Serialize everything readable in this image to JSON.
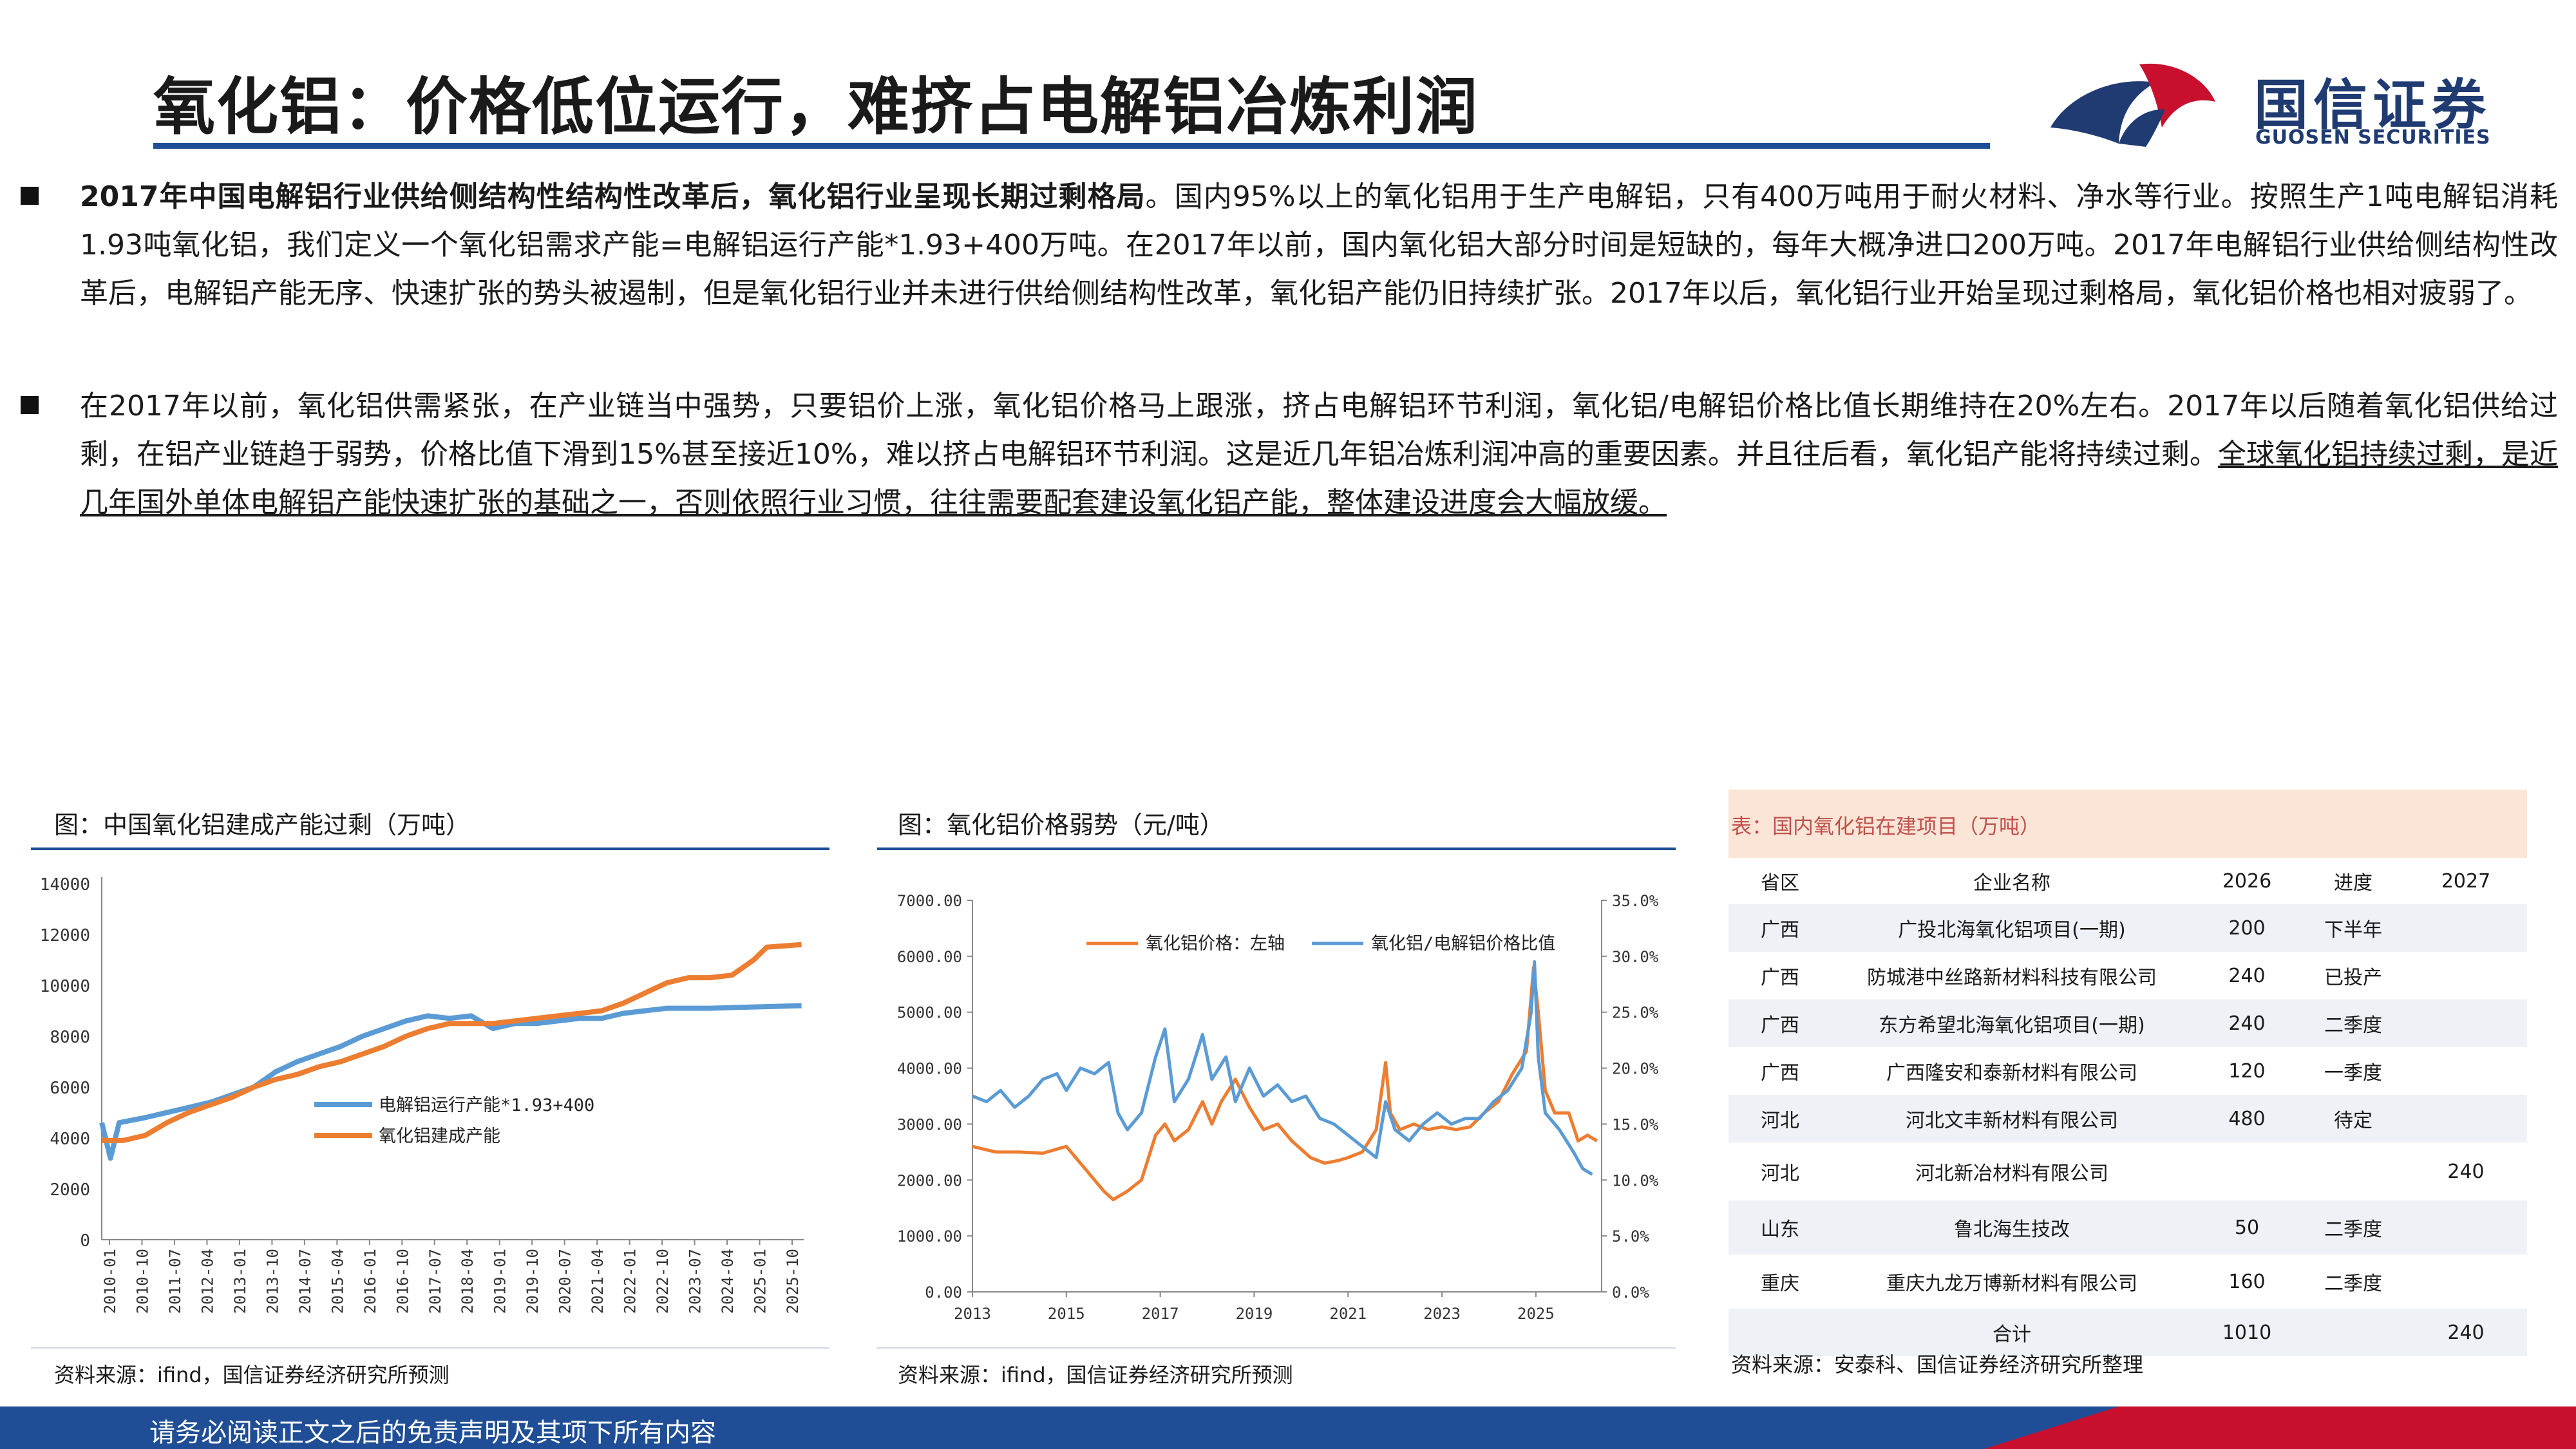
{
  "header": {
    "title": "氧化铝：价格低位运行，难挤占电解铝冶炼利润",
    "logo_text": "国信证券",
    "logo_sub": "GUOSEN SECURITIES",
    "accent_color": "#1f4e96",
    "logo_red": "#c8102e"
  },
  "bullets": [
    {
      "bold": "2017年中国电解铝行业供给侧结构性结构性改革后，氧化铝行业呈现长期过剩格局",
      "text": "。国内95%以上的氧化铝用于生产电解铝，只有400万吨用于耐火材料、净水等行业。按照生产1吨电解铝消耗1.93吨氧化铝，我们定义一个氧化铝需求产能=电解铝运行产能*1.93+400万吨。在2017年以前，国内氧化铝大部分时间是短缺的，每年大概净进口200万吨。2017年电解铝行业供给侧结构性改革后，电解铝产能无序、快速扩张的势头被遏制，但是氧化铝行业并未进行供给侧结构性改革，氧化铝产能仍旧持续扩张。2017年以后，氧化铝行业开始呈现过剩格局，氧化铝价格也相对疲弱了。"
    },
    {
      "text": "在2017年以前，氧化铝供需紧张，在产业链当中强势，只要铝价上涨，氧化铝价格马上跟涨，挤占电解铝环节利润，氧化铝/电解铝价格比值长期维持在20%左右。2017年以后随着氧化铝供给过剩，在铝产业链趋于弱势，价格比值下滑到15%甚至接近10%，难以挤占电解铝环节利润。这是近几年铝冶炼利润冲高的重要因素。并且往后看，氧化铝产能将持续过剩。",
      "underline": "全球氧化铝持续过剩，是近几年国外单体电解铝产能快速扩张的基础之一，否则依照行业习惯，往往需要配套建设氧化铝产能，整体建设进度会大幅放缓。"
    }
  ],
  "chart1": {
    "fig_title": "图：中国氧化铝建成产能过剩（万吨）",
    "source": "资料来源：ifind，国信证券经济研究所预测",
    "chart_data": {
      "type": "line",
      "ylim": [
        0,
        14000
      ],
      "yticks": [
        "0",
        "2000",
        "4000",
        "6000",
        "8000",
        "10000",
        "12000",
        "14000"
      ],
      "xticks": [
        "2010-01",
        "2010-10",
        "2011-07",
        "2012-04",
        "2013-01",
        "2013-10",
        "2014-07",
        "2015-04",
        "2016-01",
        "2016-10",
        "2017-07",
        "2018-04",
        "2019-01",
        "2019-10",
        "2020-07",
        "2021-04",
        "2022-01",
        "2022-10",
        "2023-07",
        "2024-04",
        "2025-01",
        "2025-10"
      ],
      "x_start": "2010-01",
      "x_end": "2026-02",
      "legend_position": "center",
      "series": [
        {
          "name": "电解铝运行产能*1.93+400",
          "color": "#5b9bd5",
          "points": [
            [
              2010.0,
              4600
            ],
            [
              2010.2,
              3200
            ],
            [
              2010.4,
              4600
            ],
            [
              2011.0,
              4800
            ],
            [
              2011.5,
              5000
            ],
            [
              2012.0,
              5200
            ],
            [
              2012.5,
              5400
            ],
            [
              2013.0,
              5700
            ],
            [
              2013.5,
              6000
            ],
            [
              2014.0,
              6600
            ],
            [
              2014.5,
              7000
            ],
            [
              2015.0,
              7300
            ],
            [
              2015.5,
              7600
            ],
            [
              2016.0,
              8000
            ],
            [
              2016.5,
              8300
            ],
            [
              2017.0,
              8600
            ],
            [
              2017.5,
              8800
            ],
            [
              2018.0,
              8700
            ],
            [
              2018.5,
              8800
            ],
            [
              2019.0,
              8300
            ],
            [
              2019.5,
              8500
            ],
            [
              2020.0,
              8500
            ],
            [
              2020.5,
              8600
            ],
            [
              2021.0,
              8700
            ],
            [
              2021.5,
              8700
            ],
            [
              2022.0,
              8900
            ],
            [
              2022.5,
              9000
            ],
            [
              2023.0,
              9100
            ],
            [
              2024.0,
              9100
            ],
            [
              2025.0,
              9150
            ],
            [
              2026.1,
              9200
            ]
          ]
        },
        {
          "name": "氧化铝建成产能",
          "color": "#ed7d31",
          "points": [
            [
              2010.0,
              3900
            ],
            [
              2010.5,
              3900
            ],
            [
              2011.0,
              4100
            ],
            [
              2011.5,
              4600
            ],
            [
              2012.0,
              5000
            ],
            [
              2012.5,
              5300
            ],
            [
              2013.0,
              5600
            ],
            [
              2013.5,
              6000
            ],
            [
              2014.0,
              6300
            ],
            [
              2014.5,
              6500
            ],
            [
              2015.0,
              6800
            ],
            [
              2015.5,
              7000
            ],
            [
              2016.0,
              7300
            ],
            [
              2016.5,
              7600
            ],
            [
              2017.0,
              8000
            ],
            [
              2017.5,
              8300
            ],
            [
              2018.0,
              8500
            ],
            [
              2018.5,
              8500
            ],
            [
              2019.0,
              8500
            ],
            [
              2019.5,
              8600
            ],
            [
              2020.0,
              8700
            ],
            [
              2020.5,
              8800
            ],
            [
              2021.0,
              8900
            ],
            [
              2021.5,
              9000
            ],
            [
              2022.0,
              9300
            ],
            [
              2022.5,
              9700
            ],
            [
              2023.0,
              10100
            ],
            [
              2023.5,
              10300
            ],
            [
              2024.0,
              10300
            ],
            [
              2024.5,
              10400
            ],
            [
              2025.0,
              11000
            ],
            [
              2025.3,
              11500
            ],
            [
              2026.1,
              11600
            ]
          ]
        }
      ]
    }
  },
  "chart2": {
    "fig_title": "图：氧化铝价格弱势（元/吨）",
    "source": "资料来源：ifind，国信证券经济研究所预测",
    "chart_data": {
      "type": "line",
      "ylim": [
        0,
        7000
      ],
      "ylim_right": [
        0,
        35
      ],
      "yticks_left": [
        "0.00",
        "1000.00",
        "2000.00",
        "3000.00",
        "4000.00",
        "5000.00",
        "6000.00",
        "7000.00"
      ],
      "yticks_right": [
        "0.0%",
        "5.0%",
        "10.0%",
        "15.0%",
        "20.0%",
        "25.0%",
        "30.0%",
        "35.0%"
      ],
      "xticks": [
        "2013",
        "2015",
        "2017",
        "2019",
        "2021",
        "2023",
        "2025"
      ],
      "x_range": [
        2013,
        2026.4
      ],
      "legend_position": "top",
      "series": [
        {
          "name": "氧化铝价格：左轴",
          "axis": "left",
          "color": "#ed7d31",
          "points": [
            [
              2013.0,
              2600
            ],
            [
              2013.5,
              2500
            ],
            [
              2014.0,
              2500
            ],
            [
              2014.5,
              2480
            ],
            [
              2015.0,
              2600
            ],
            [
              2015.4,
              2200
            ],
            [
              2015.8,
              1800
            ],
            [
              2016.0,
              1650
            ],
            [
              2016.3,
              1800
            ],
            [
              2016.6,
              2000
            ],
            [
              2016.9,
              2800
            ],
            [
              2017.1,
              3000
            ],
            [
              2017.3,
              2700
            ],
            [
              2017.6,
              2900
            ],
            [
              2017.9,
              3400
            ],
            [
              2018.1,
              3000
            ],
            [
              2018.3,
              3400
            ],
            [
              2018.6,
              3800
            ],
            [
              2018.9,
              3300
            ],
            [
              2019.2,
              2900
            ],
            [
              2019.5,
              3000
            ],
            [
              2019.8,
              2700
            ],
            [
              2020.2,
              2400
            ],
            [
              2020.5,
              2300
            ],
            [
              2020.8,
              2350
            ],
            [
              2021.0,
              2400
            ],
            [
              2021.3,
              2500
            ],
            [
              2021.6,
              2900
            ],
            [
              2021.8,
              4100
            ],
            [
              2021.9,
              3200
            ],
            [
              2022.1,
              2900
            ],
            [
              2022.4,
              3000
            ],
            [
              2022.7,
              2900
            ],
            [
              2023.0,
              2950
            ],
            [
              2023.3,
              2900
            ],
            [
              2023.6,
              2950
            ],
            [
              2023.9,
              3200
            ],
            [
              2024.2,
              3400
            ],
            [
              2024.5,
              3900
            ],
            [
              2024.8,
              4300
            ],
            [
              2024.95,
              5800
            ],
            [
              2025.05,
              5000
            ],
            [
              2025.2,
              3600
            ],
            [
              2025.4,
              3200
            ],
            [
              2025.7,
              3200
            ],
            [
              2025.9,
              2700
            ],
            [
              2026.1,
              2800
            ],
            [
              2026.3,
              2700
            ]
          ]
        },
        {
          "name": "氧化铝/电解铝价格比值",
          "axis": "right",
          "color": "#5b9bd5",
          "points": [
            [
              2013.0,
              17.5
            ],
            [
              2013.3,
              17
            ],
            [
              2013.6,
              18
            ],
            [
              2013.9,
              16.5
            ],
            [
              2014.2,
              17.5
            ],
            [
              2014.5,
              19
            ],
            [
              2014.8,
              19.5
            ],
            [
              2015.0,
              18
            ],
            [
              2015.3,
              20
            ],
            [
              2015.6,
              19.5
            ],
            [
              2015.9,
              20.5
            ],
            [
              2016.1,
              16
            ],
            [
              2016.3,
              14.5
            ],
            [
              2016.6,
              16
            ],
            [
              2016.9,
              21
            ],
            [
              2017.1,
              23.5
            ],
            [
              2017.3,
              17
            ],
            [
              2017.6,
              19
            ],
            [
              2017.9,
              23
            ],
            [
              2018.1,
              19
            ],
            [
              2018.4,
              21
            ],
            [
              2018.6,
              17
            ],
            [
              2018.9,
              20
            ],
            [
              2019.2,
              17.5
            ],
            [
              2019.5,
              18.5
            ],
            [
              2019.8,
              17
            ],
            [
              2020.1,
              17.5
            ],
            [
              2020.4,
              15.5
            ],
            [
              2020.7,
              15
            ],
            [
              2021.0,
              14
            ],
            [
              2021.3,
              13
            ],
            [
              2021.6,
              12
            ],
            [
              2021.8,
              17
            ],
            [
              2022.0,
              14.5
            ],
            [
              2022.3,
              13.5
            ],
            [
              2022.6,
              15
            ],
            [
              2022.9,
              16
            ],
            [
              2023.2,
              15
            ],
            [
              2023.5,
              15.5
            ],
            [
              2023.8,
              15.5
            ],
            [
              2024.1,
              17
            ],
            [
              2024.4,
              18
            ],
            [
              2024.7,
              20
            ],
            [
              2024.9,
              25
            ],
            [
              2024.97,
              29.5
            ],
            [
              2025.05,
              21
            ],
            [
              2025.2,
              16
            ],
            [
              2025.5,
              14.5
            ],
            [
              2025.8,
              12.5
            ],
            [
              2026.0,
              11
            ],
            [
              2026.2,
              10.5
            ]
          ]
        }
      ]
    }
  },
  "table": {
    "caption": "表：国内氧化铝在建项目（万吨）",
    "headers": [
      "省区",
      "企业名称",
      "2026",
      "进度",
      "2027"
    ],
    "rows": [
      [
        "广西",
        "广投北海氧化铝项目(一期)",
        "200",
        "下半年",
        ""
      ],
      [
        "广西",
        "防城港中丝路新材料科技有限公司",
        "240",
        "已投产",
        ""
      ],
      [
        "广西",
        "东方希望北海氧化铝项目(一期)",
        "240",
        "二季度",
        ""
      ],
      [
        "广西",
        "广西隆安和泰新材料有限公司",
        "120",
        "一季度",
        ""
      ],
      [
        "河北",
        "河北文丰新材料有限公司",
        "480",
        "待定",
        ""
      ],
      [
        "河北",
        "河北新冶材料有限公司",
        "",
        "",
        "240"
      ],
      [
        "山东",
        "鲁北海生技改",
        "50",
        "二季度",
        ""
      ],
      [
        "重庆",
        "重庆九龙万博新材料有限公司",
        "160",
        "二季度",
        ""
      ],
      [
        "",
        "合计",
        "1010",
        "",
        "240"
      ]
    ],
    "source": "资料来源：安泰科、国信证券经济研究所整理"
  },
  "footer": {
    "disclaimer": "请务必阅读正文之后的免责声明及其项下所有内容"
  }
}
